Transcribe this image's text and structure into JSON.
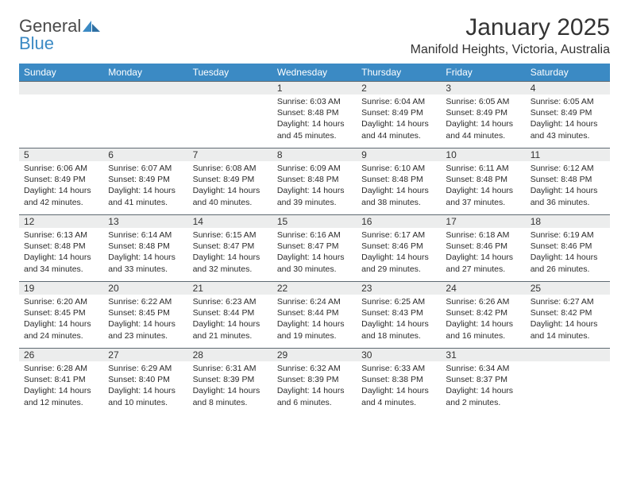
{
  "brand": {
    "part1": "General",
    "part2": "Blue"
  },
  "title": "January 2025",
  "location": "Manifold Heights, Victoria, Australia",
  "colors": {
    "header_bg": "#3b8ac4",
    "daynum_bg": "#eceded",
    "rule": "#5f6a72",
    "text": "#333333"
  },
  "weekdays": [
    "Sunday",
    "Monday",
    "Tuesday",
    "Wednesday",
    "Thursday",
    "Friday",
    "Saturday"
  ],
  "weeks": [
    [
      null,
      null,
      null,
      {
        "n": "1",
        "sr": "Sunrise: 6:03 AM",
        "ss": "Sunset: 8:48 PM",
        "dl": "Daylight: 14 hours and 45 minutes."
      },
      {
        "n": "2",
        "sr": "Sunrise: 6:04 AM",
        "ss": "Sunset: 8:49 PM",
        "dl": "Daylight: 14 hours and 44 minutes."
      },
      {
        "n": "3",
        "sr": "Sunrise: 6:05 AM",
        "ss": "Sunset: 8:49 PM",
        "dl": "Daylight: 14 hours and 44 minutes."
      },
      {
        "n": "4",
        "sr": "Sunrise: 6:05 AM",
        "ss": "Sunset: 8:49 PM",
        "dl": "Daylight: 14 hours and 43 minutes."
      }
    ],
    [
      {
        "n": "5",
        "sr": "Sunrise: 6:06 AM",
        "ss": "Sunset: 8:49 PM",
        "dl": "Daylight: 14 hours and 42 minutes."
      },
      {
        "n": "6",
        "sr": "Sunrise: 6:07 AM",
        "ss": "Sunset: 8:49 PM",
        "dl": "Daylight: 14 hours and 41 minutes."
      },
      {
        "n": "7",
        "sr": "Sunrise: 6:08 AM",
        "ss": "Sunset: 8:49 PM",
        "dl": "Daylight: 14 hours and 40 minutes."
      },
      {
        "n": "8",
        "sr": "Sunrise: 6:09 AM",
        "ss": "Sunset: 8:48 PM",
        "dl": "Daylight: 14 hours and 39 minutes."
      },
      {
        "n": "9",
        "sr": "Sunrise: 6:10 AM",
        "ss": "Sunset: 8:48 PM",
        "dl": "Daylight: 14 hours and 38 minutes."
      },
      {
        "n": "10",
        "sr": "Sunrise: 6:11 AM",
        "ss": "Sunset: 8:48 PM",
        "dl": "Daylight: 14 hours and 37 minutes."
      },
      {
        "n": "11",
        "sr": "Sunrise: 6:12 AM",
        "ss": "Sunset: 8:48 PM",
        "dl": "Daylight: 14 hours and 36 minutes."
      }
    ],
    [
      {
        "n": "12",
        "sr": "Sunrise: 6:13 AM",
        "ss": "Sunset: 8:48 PM",
        "dl": "Daylight: 14 hours and 34 minutes."
      },
      {
        "n": "13",
        "sr": "Sunrise: 6:14 AM",
        "ss": "Sunset: 8:48 PM",
        "dl": "Daylight: 14 hours and 33 minutes."
      },
      {
        "n": "14",
        "sr": "Sunrise: 6:15 AM",
        "ss": "Sunset: 8:47 PM",
        "dl": "Daylight: 14 hours and 32 minutes."
      },
      {
        "n": "15",
        "sr": "Sunrise: 6:16 AM",
        "ss": "Sunset: 8:47 PM",
        "dl": "Daylight: 14 hours and 30 minutes."
      },
      {
        "n": "16",
        "sr": "Sunrise: 6:17 AM",
        "ss": "Sunset: 8:46 PM",
        "dl": "Daylight: 14 hours and 29 minutes."
      },
      {
        "n": "17",
        "sr": "Sunrise: 6:18 AM",
        "ss": "Sunset: 8:46 PM",
        "dl": "Daylight: 14 hours and 27 minutes."
      },
      {
        "n": "18",
        "sr": "Sunrise: 6:19 AM",
        "ss": "Sunset: 8:46 PM",
        "dl": "Daylight: 14 hours and 26 minutes."
      }
    ],
    [
      {
        "n": "19",
        "sr": "Sunrise: 6:20 AM",
        "ss": "Sunset: 8:45 PM",
        "dl": "Daylight: 14 hours and 24 minutes."
      },
      {
        "n": "20",
        "sr": "Sunrise: 6:22 AM",
        "ss": "Sunset: 8:45 PM",
        "dl": "Daylight: 14 hours and 23 minutes."
      },
      {
        "n": "21",
        "sr": "Sunrise: 6:23 AM",
        "ss": "Sunset: 8:44 PM",
        "dl": "Daylight: 14 hours and 21 minutes."
      },
      {
        "n": "22",
        "sr": "Sunrise: 6:24 AM",
        "ss": "Sunset: 8:44 PM",
        "dl": "Daylight: 14 hours and 19 minutes."
      },
      {
        "n": "23",
        "sr": "Sunrise: 6:25 AM",
        "ss": "Sunset: 8:43 PM",
        "dl": "Daylight: 14 hours and 18 minutes."
      },
      {
        "n": "24",
        "sr": "Sunrise: 6:26 AM",
        "ss": "Sunset: 8:42 PM",
        "dl": "Daylight: 14 hours and 16 minutes."
      },
      {
        "n": "25",
        "sr": "Sunrise: 6:27 AM",
        "ss": "Sunset: 8:42 PM",
        "dl": "Daylight: 14 hours and 14 minutes."
      }
    ],
    [
      {
        "n": "26",
        "sr": "Sunrise: 6:28 AM",
        "ss": "Sunset: 8:41 PM",
        "dl": "Daylight: 14 hours and 12 minutes."
      },
      {
        "n": "27",
        "sr": "Sunrise: 6:29 AM",
        "ss": "Sunset: 8:40 PM",
        "dl": "Daylight: 14 hours and 10 minutes."
      },
      {
        "n": "28",
        "sr": "Sunrise: 6:31 AM",
        "ss": "Sunset: 8:39 PM",
        "dl": "Daylight: 14 hours and 8 minutes."
      },
      {
        "n": "29",
        "sr": "Sunrise: 6:32 AM",
        "ss": "Sunset: 8:39 PM",
        "dl": "Daylight: 14 hours and 6 minutes."
      },
      {
        "n": "30",
        "sr": "Sunrise: 6:33 AM",
        "ss": "Sunset: 8:38 PM",
        "dl": "Daylight: 14 hours and 4 minutes."
      },
      {
        "n": "31",
        "sr": "Sunrise: 6:34 AM",
        "ss": "Sunset: 8:37 PM",
        "dl": "Daylight: 14 hours and 2 minutes."
      },
      null
    ]
  ]
}
